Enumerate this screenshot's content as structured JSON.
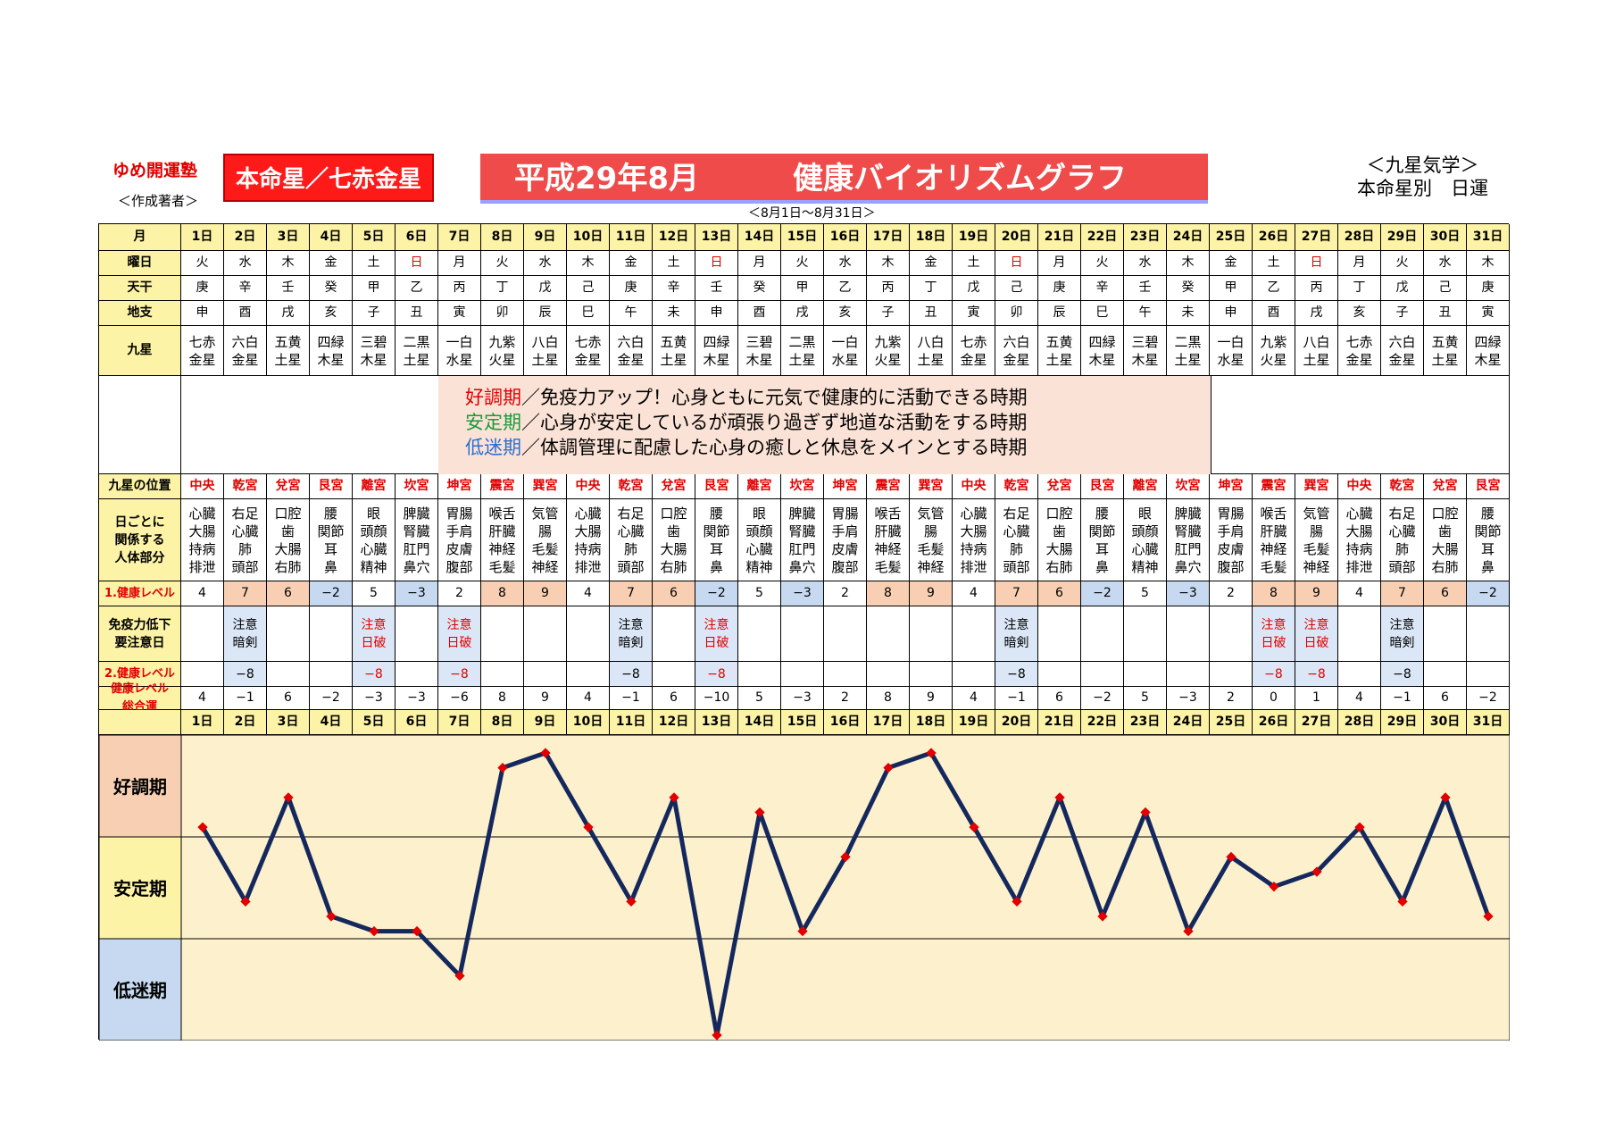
{
  "header": {
    "brand": "ゆめ開運塾",
    "brand_sub": "＜作成著者＞",
    "honmei": "本命星／七赤金星",
    "title_left": "平成29年8月",
    "title_right": "健康バイオリズムグラフ",
    "date_range": "＜8月1日～8月31日＞",
    "kyusei_line1": "＜九星気学＞",
    "kyusei_line2": "本命星別　日運"
  },
  "row_labels": {
    "month": "月",
    "weekday": "曜日",
    "tenkan": "天干",
    "chishi": "地支",
    "kyusei": "九星",
    "position": "九星の位置",
    "body": "日ごとに\n関係する\n人体部分",
    "level1": "1.健康レベル",
    "immune": "免疫力低下\n要注意日",
    "level2": "2.健康レベル",
    "total": "健康レベル\n総合運"
  },
  "days": [
    "1日",
    "2日",
    "3日",
    "4日",
    "5日",
    "6日",
    "7日",
    "8日",
    "9日",
    "10日",
    "11日",
    "12日",
    "13日",
    "14日",
    "15日",
    "16日",
    "17日",
    "18日",
    "19日",
    "20日",
    "21日",
    "22日",
    "23日",
    "24日",
    "25日",
    "26日",
    "27日",
    "28日",
    "29日",
    "30日",
    "31日"
  ],
  "weekdays": [
    "火",
    "水",
    "木",
    "金",
    "土",
    "日",
    "月",
    "火",
    "水",
    "木",
    "金",
    "土",
    "日",
    "月",
    "火",
    "水",
    "木",
    "金",
    "土",
    "日",
    "月",
    "火",
    "水",
    "木",
    "金",
    "土",
    "日",
    "月",
    "火",
    "水",
    "木"
  ],
  "tenkan": [
    "庚",
    "辛",
    "壬",
    "癸",
    "甲",
    "乙",
    "丙",
    "丁",
    "戊",
    "己",
    "庚",
    "辛",
    "壬",
    "癸",
    "甲",
    "乙",
    "丙",
    "丁",
    "戊",
    "己",
    "庚",
    "辛",
    "壬",
    "癸",
    "甲",
    "乙",
    "丙",
    "丁",
    "戊",
    "己",
    "庚"
  ],
  "chishi": [
    "申",
    "酉",
    "戌",
    "亥",
    "子",
    "丑",
    "寅",
    "卯",
    "辰",
    "巳",
    "午",
    "未",
    "申",
    "酉",
    "戌",
    "亥",
    "子",
    "丑",
    "寅",
    "卯",
    "辰",
    "巳",
    "午",
    "未",
    "申",
    "酉",
    "戌",
    "亥",
    "子",
    "丑",
    "寅"
  ],
  "kyusei": [
    "七赤\n金星",
    "六白\n金星",
    "五黄\n土星",
    "四緑\n木星",
    "三碧\n木星",
    "二黒\n土星",
    "一白\n水星",
    "九紫\n火星",
    "八白\n土星",
    "七赤\n金星",
    "六白\n金星",
    "五黄\n土星",
    "四緑\n木星",
    "三碧\n木星",
    "二黒\n土星",
    "一白\n水星",
    "九紫\n火星",
    "八白\n土星",
    "七赤\n金星",
    "六白\n金星",
    "五黄\n土星",
    "四緑\n木星",
    "三碧\n木星",
    "二黒\n土星",
    "一白\n水星",
    "九紫\n火星",
    "八白\n土星",
    "七赤\n金星",
    "六白\n金星",
    "五黄\n土星",
    "四緑\n木星"
  ],
  "legend": {
    "l1_key": "好調期",
    "l1_text": "／免疫力アップ！心身ともに元気で健康的に活動できる時期",
    "l2_key": "安定期",
    "l2_text": "／心身が安定しているが頑張り過ぎず地道な活動をする時期",
    "l3_key": "低迷期",
    "l3_text": "／体調管理に配慮した心身の癒しと休息をメインとする時期"
  },
  "positions": [
    "中央",
    "乾宮",
    "兌宮",
    "艮宮",
    "離宮",
    "坎宮",
    "坤宮",
    "震宮",
    "巽宮",
    "中央",
    "乾宮",
    "兌宮",
    "艮宮",
    "離宮",
    "坎宮",
    "坤宮",
    "震宮",
    "巽宮",
    "中央",
    "乾宮",
    "兌宮",
    "艮宮",
    "離宮",
    "坎宮",
    "坤宮",
    "震宮",
    "巽宮",
    "中央",
    "乾宮",
    "兌宮",
    "艮宮"
  ],
  "body_parts": [
    "心臓\n大腸\n持病\n排泄",
    "右足\n心臓\n肺\n頭部",
    "口腔\n歯\n大腸\n右肺",
    "腰\n関節\n耳\n鼻",
    "眼\n頭顔\n心臓\n精神",
    "脾臓\n腎臓\n肛門\n鼻穴",
    "胃腸\n手肩\n皮膚\n腹部",
    "喉舌\n肝臓\n神経\n毛髪",
    "気管\n腸\n毛髪\n神経",
    "心臓\n大腸\n持病\n排泄",
    "右足\n心臓\n肺\n頭部",
    "口腔\n歯\n大腸\n右肺",
    "腰\n関節\n耳\n鼻",
    "眼\n頭顔\n心臓\n精神",
    "脾臓\n腎臓\n肛門\n鼻穴",
    "胃腸\n手肩\n皮膚\n腹部",
    "喉舌\n肝臓\n神経\n毛髪",
    "気管\n腸\n毛髪\n神経",
    "心臓\n大腸\n持病\n排泄",
    "右足\n心臓\n肺\n頭部",
    "口腔\n歯\n大腸\n右肺",
    "腰\n関節\n耳\n鼻",
    "眼\n頭顔\n心臓\n精神",
    "脾臓\n腎臓\n肛門\n鼻穴",
    "胃腸\n手肩\n皮膚\n腹部",
    "喉舌\n肝臓\n神経\n毛髪",
    "気管\n腸\n毛髪\n神経",
    "心臓\n大腸\n持病\n排泄",
    "右足\n心臓\n肺\n頭部",
    "口腔\n歯\n大腸\n右肺",
    "腰\n関節\n耳\n鼻"
  ],
  "level1": [
    "4",
    "7",
    "6",
    "−2",
    "5",
    "−3",
    "2",
    "8",
    "9",
    "4",
    "7",
    "6",
    "−2",
    "5",
    "−3",
    "2",
    "8",
    "9",
    "4",
    "7",
    "6",
    "−2",
    "5",
    "−3",
    "2",
    "8",
    "9",
    "4",
    "7",
    "6",
    "−2"
  ],
  "immune": [
    "",
    "注意\n暗剣",
    "",
    "",
    "注意\n日破",
    "",
    "注意\n日破",
    "",
    "",
    "",
    "注意\n暗剣",
    "",
    "注意\n日破",
    "",
    "",
    "",
    "",
    "",
    "",
    "注意\n暗剣",
    "",
    "",
    "",
    "",
    "",
    "注意\n日破",
    "注意\n日破",
    "",
    "注意\n暗剣",
    "",
    ""
  ],
  "level2": [
    "",
    "−8",
    "",
    "",
    "−8",
    "",
    "−8",
    "",
    "",
    "",
    "−8",
    "",
    "−8",
    "",
    "",
    "",
    "",
    "",
    "",
    "−8",
    "",
    "",
    "",
    "",
    "",
    "−8",
    "−8",
    "",
    "−8",
    "",
    ""
  ],
  "total": [
    "4",
    "−1",
    "6",
    "−2",
    "−3",
    "−3",
    "−6",
    "8",
    "9",
    "4",
    "−1",
    "6",
    "−10",
    "5",
    "−3",
    "2",
    "8",
    "9",
    "4",
    "−1",
    "6",
    "−2",
    "5",
    "−3",
    "2",
    "0",
    "1",
    "4",
    "−1",
    "6",
    "−2"
  ],
  "chart_data": {
    "type": "line",
    "x": [
      "1日",
      "2日",
      "3日",
      "4日",
      "5日",
      "6日",
      "7日",
      "8日",
      "9日",
      "10日",
      "11日",
      "12日",
      "13日",
      "14日",
      "15日",
      "16日",
      "17日",
      "18日",
      "19日",
      "20日",
      "21日",
      "22日",
      "23日",
      "24日",
      "25日",
      "26日",
      "27日",
      "28日",
      "29日",
      "30日",
      "31日"
    ],
    "series": [
      {
        "values": [
          4,
          -1,
          6,
          -2,
          -3,
          -3,
          -6,
          8,
          9,
          4,
          -1,
          6,
          -10,
          5,
          -3,
          2,
          8,
          9,
          4,
          -1,
          6,
          -2,
          5,
          -3,
          2,
          0,
          1,
          4,
          -1,
          6,
          -2
        ]
      }
    ],
    "bands": [
      "好調期",
      "安定期",
      "低迷期"
    ],
    "ylim": [
      -10,
      9
    ],
    "line_color": "#14285e",
    "marker_color": "#e00000"
  },
  "colors": {
    "good": "#f8cfb2",
    "low": "#c6d9f0",
    "label": "#fdf3a6"
  }
}
